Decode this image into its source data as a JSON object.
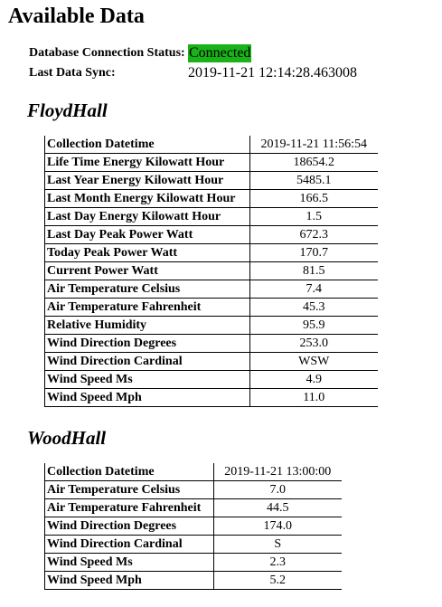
{
  "page": {
    "title": "Available Data"
  },
  "status": {
    "connection_label": "Database Connection Status:",
    "connection_value": "Connected",
    "connection_color": "#19b219",
    "sync_label": "Last Data Sync:",
    "sync_value": "2019-11-21 12:14:28.463008"
  },
  "sections": [
    {
      "title": "FloydHall",
      "rows": [
        {
          "key": "Collection Datetime",
          "value": "2019-11-21 11:56:54"
        },
        {
          "key": "Life Time Energy Kilowatt Hour",
          "value": "18654.2"
        },
        {
          "key": "Last Year Energy Kilowatt Hour",
          "value": "5485.1"
        },
        {
          "key": "Last Month Energy Kilowatt Hour",
          "value": "166.5"
        },
        {
          "key": "Last Day Energy Kilowatt Hour",
          "value": "1.5"
        },
        {
          "key": "Last Day Peak Power Watt",
          "value": "672.3"
        },
        {
          "key": "Today Peak Power Watt",
          "value": "170.7"
        },
        {
          "key": "Current Power Watt",
          "value": "81.5"
        },
        {
          "key": "Air Temperature Celsius",
          "value": "7.4"
        },
        {
          "key": "Air Temperature Fahrenheit",
          "value": "45.3"
        },
        {
          "key": "Relative Humidity",
          "value": "95.9"
        },
        {
          "key": "Wind Direction Degrees",
          "value": "253.0"
        },
        {
          "key": "Wind Direction Cardinal",
          "value": "WSW"
        },
        {
          "key": "Wind Speed Ms",
          "value": "4.9"
        },
        {
          "key": "Wind Speed Mph",
          "value": "11.0"
        }
      ]
    },
    {
      "title": "WoodHall",
      "rows": [
        {
          "key": "Collection Datetime",
          "value": "2019-11-21 13:00:00"
        },
        {
          "key": "Air Temperature Celsius",
          "value": "7.0"
        },
        {
          "key": "Air Temperature Fahrenheit",
          "value": "44.5"
        },
        {
          "key": "Wind Direction Degrees",
          "value": "174.0"
        },
        {
          "key": "Wind Direction Cardinal",
          "value": "S"
        },
        {
          "key": "Wind Speed Ms",
          "value": "2.3"
        },
        {
          "key": "Wind Speed Mph",
          "value": "5.2"
        }
      ]
    }
  ]
}
